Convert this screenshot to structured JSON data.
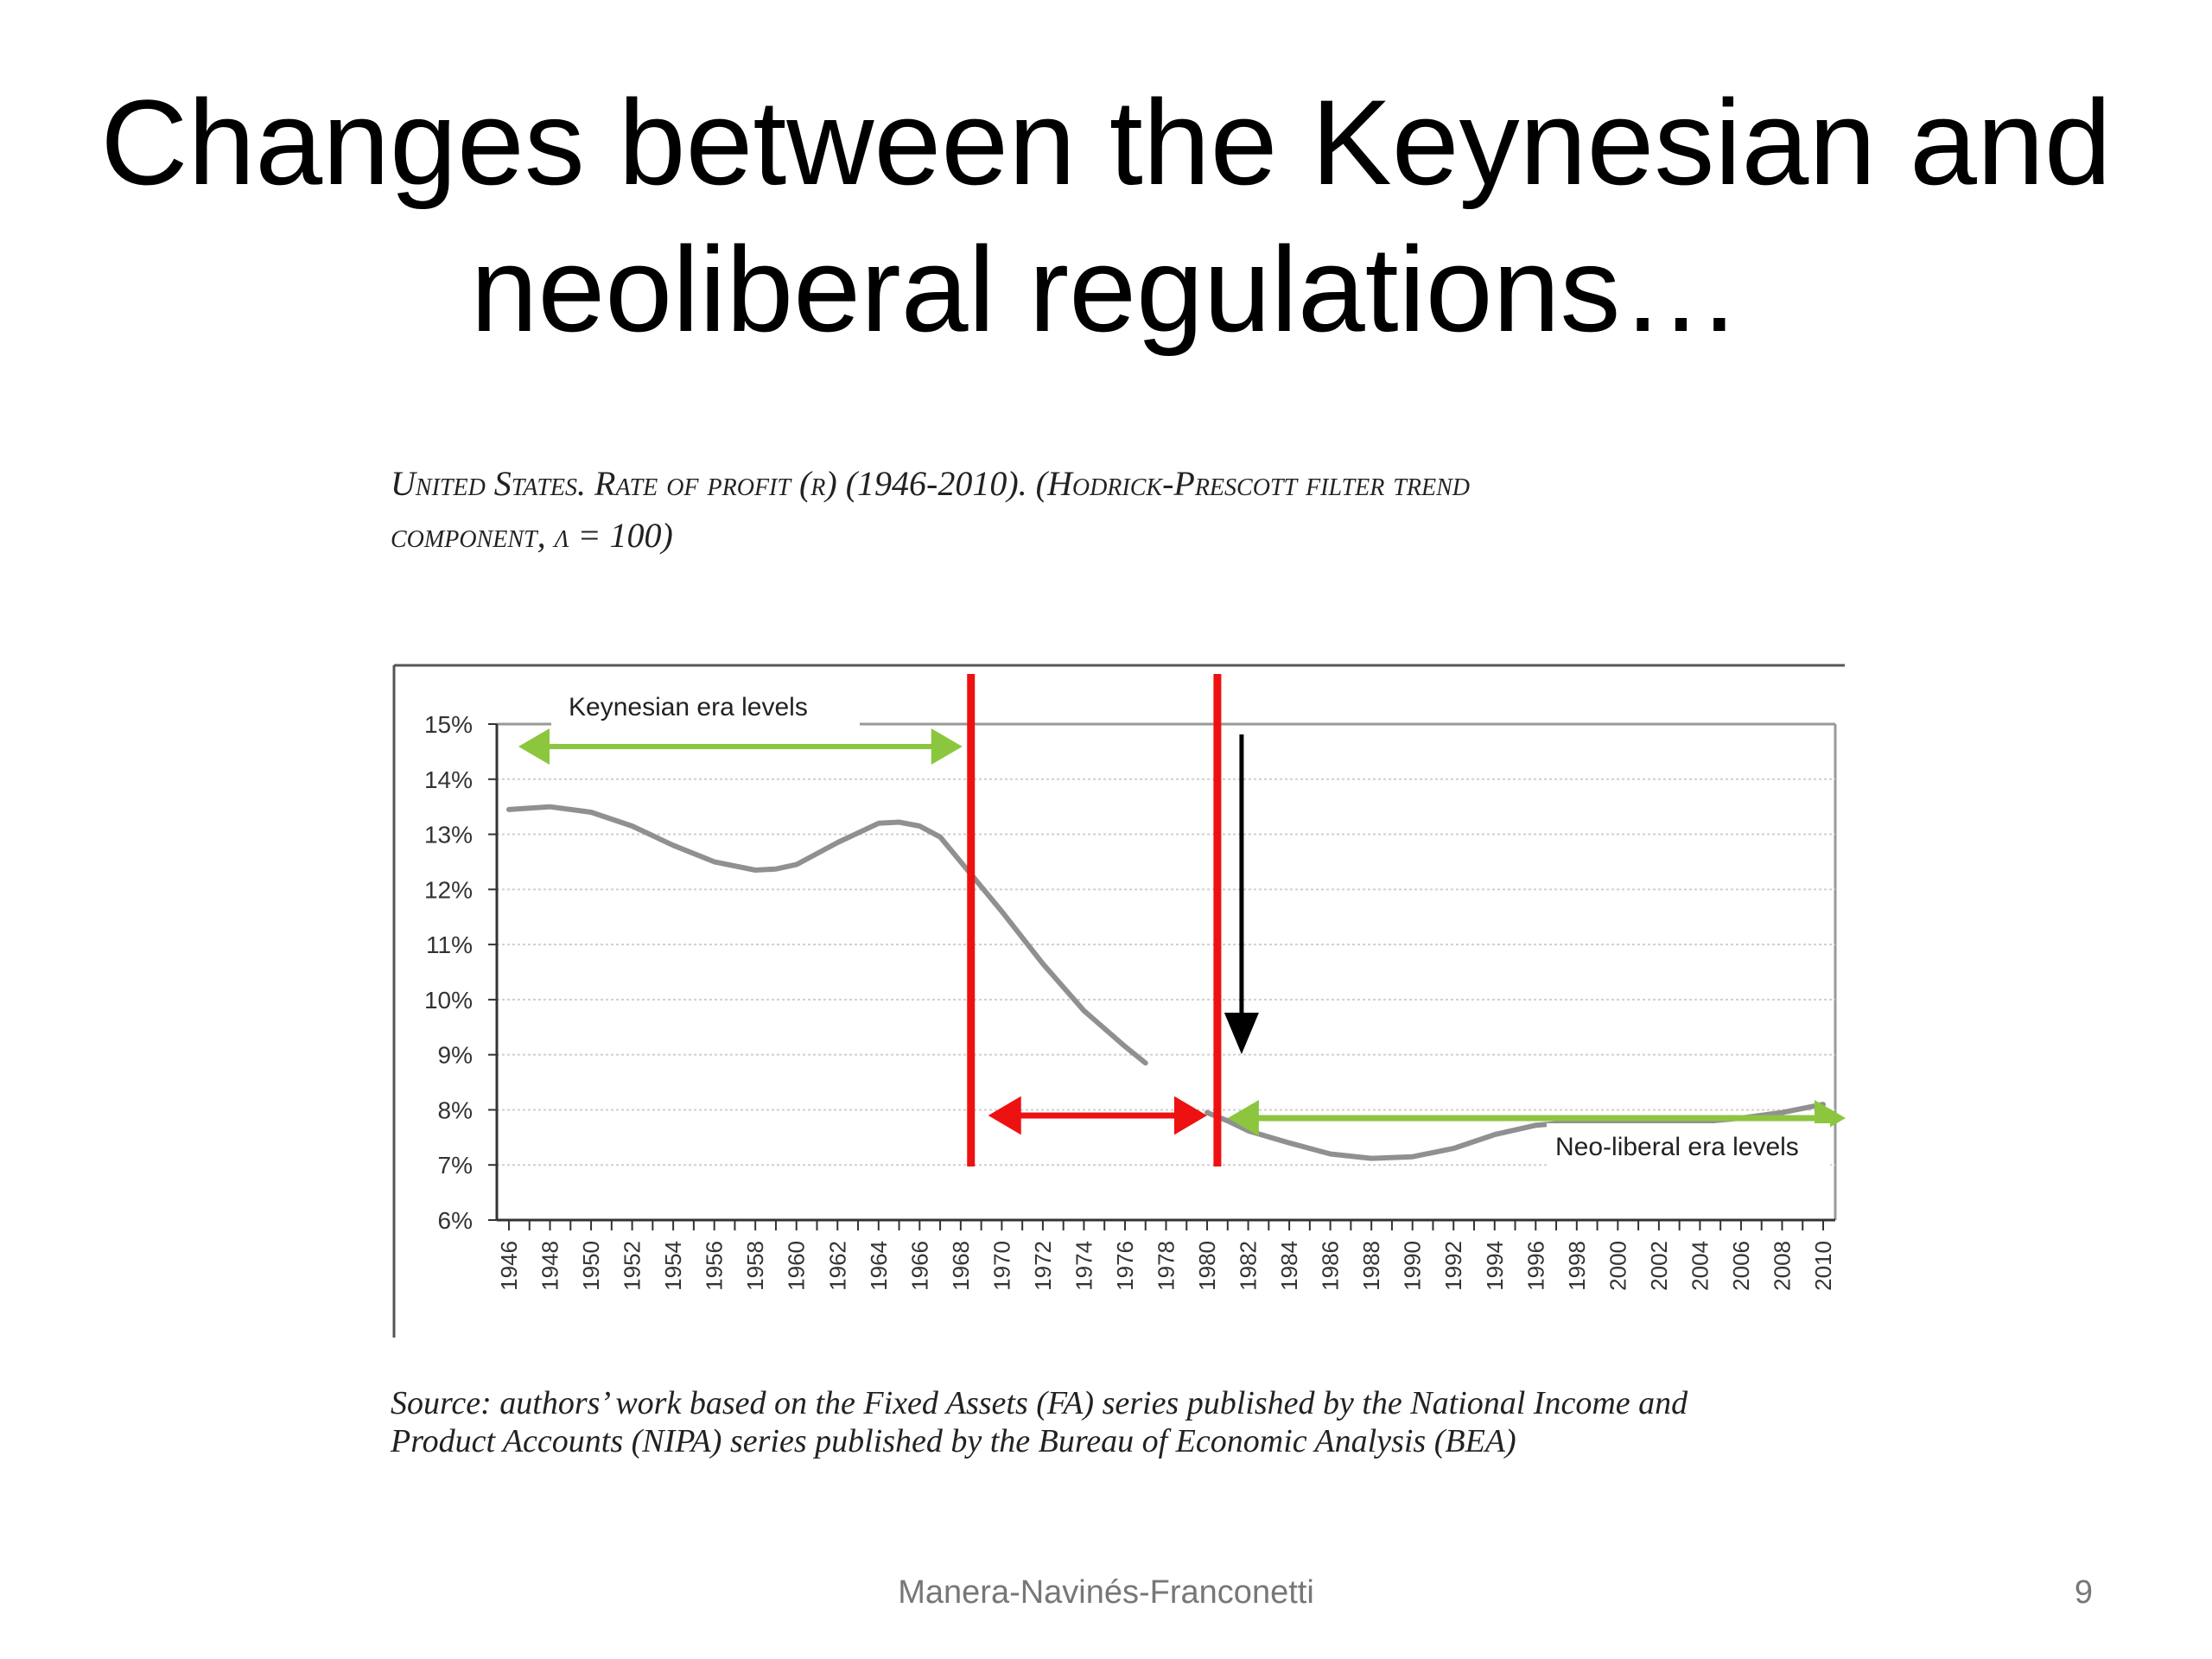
{
  "slide": {
    "title_line1": "Changes between the Keynesian and",
    "title_line2": "neoliberal regulations…",
    "chart_heading_line1": "United States. Rate of profit (r) (1946-2010). (Hodrick-Prescott filter trend",
    "chart_heading_line2": "component, λ = 100)",
    "source_line1": "Source: authors’ work based on the Fixed Assets (FA) series published by the National Income and",
    "source_line2": "Product Accounts (NIPA) series published by the Bureau of Economic Analysis (BEA)",
    "footer": "Manera-Navinés-Franconetti",
    "page_number": "9"
  },
  "chart_data": {
    "type": "line",
    "title": "United States. Rate of profit (r) (1946-2010). (Hodrick-Prescott filter trend component, λ = 100)",
    "xlabel": "",
    "ylabel": "",
    "xlim": [
      1946,
      2010
    ],
    "ylim": [
      6,
      15
    ],
    "y_ticks": [
      "6%",
      "7%",
      "8%",
      "9%",
      "10%",
      "11%",
      "12%",
      "13%",
      "14%",
      "15%"
    ],
    "x_ticks": [
      "1946",
      "1948",
      "1950",
      "1952",
      "1954",
      "1956",
      "1958",
      "1960",
      "1962",
      "1964",
      "1966",
      "1968",
      "1970",
      "1972",
      "1974",
      "1976",
      "1978",
      "1980",
      "1982",
      "1984",
      "1986",
      "1988",
      "1990",
      "1992",
      "1994",
      "1996",
      "1998",
      "2000",
      "2002",
      "2004",
      "2006",
      "2008",
      "2010"
    ],
    "grid": true,
    "series": [
      {
        "x": [
          1946,
          1948,
          1950,
          1952,
          1954,
          1956,
          1958,
          1959,
          1960,
          1962,
          1964,
          1965,
          1966,
          1967,
          1968,
          1970,
          1972,
          1974,
          1976,
          1977
        ],
        "values": [
          13.45,
          13.5,
          13.4,
          13.15,
          12.8,
          12.5,
          12.35,
          12.37,
          12.45,
          12.85,
          13.2,
          13.22,
          13.15,
          12.95,
          12.5,
          11.6,
          10.65,
          9.8,
          9.15,
          8.85
        ]
      },
      {
        "x": [
          1980,
          1981,
          1982,
          1984,
          1986,
          1988,
          1990,
          1992,
          1994,
          1996,
          1998,
          2000,
          2002,
          2004,
          2006,
          2008,
          2010
        ],
        "values": [
          7.95,
          7.8,
          7.62,
          7.4,
          7.2,
          7.12,
          7.15,
          7.3,
          7.55,
          7.72,
          7.78,
          7.8,
          7.8,
          7.78,
          7.85,
          7.95,
          8.1
        ]
      }
    ],
    "annotations": {
      "keynesian_label": "Keynesian era levels",
      "neoliberal_label": "Neo-liberal era levels",
      "vertical_lines_x": [
        1968.5,
        1980.5
      ],
      "colors": {
        "line": "#909090",
        "vertical": "#ee1111",
        "green_arrow": "#8cc63f",
        "red_arrow": "#ee1111",
        "black_arrow": "#000000"
      }
    }
  }
}
